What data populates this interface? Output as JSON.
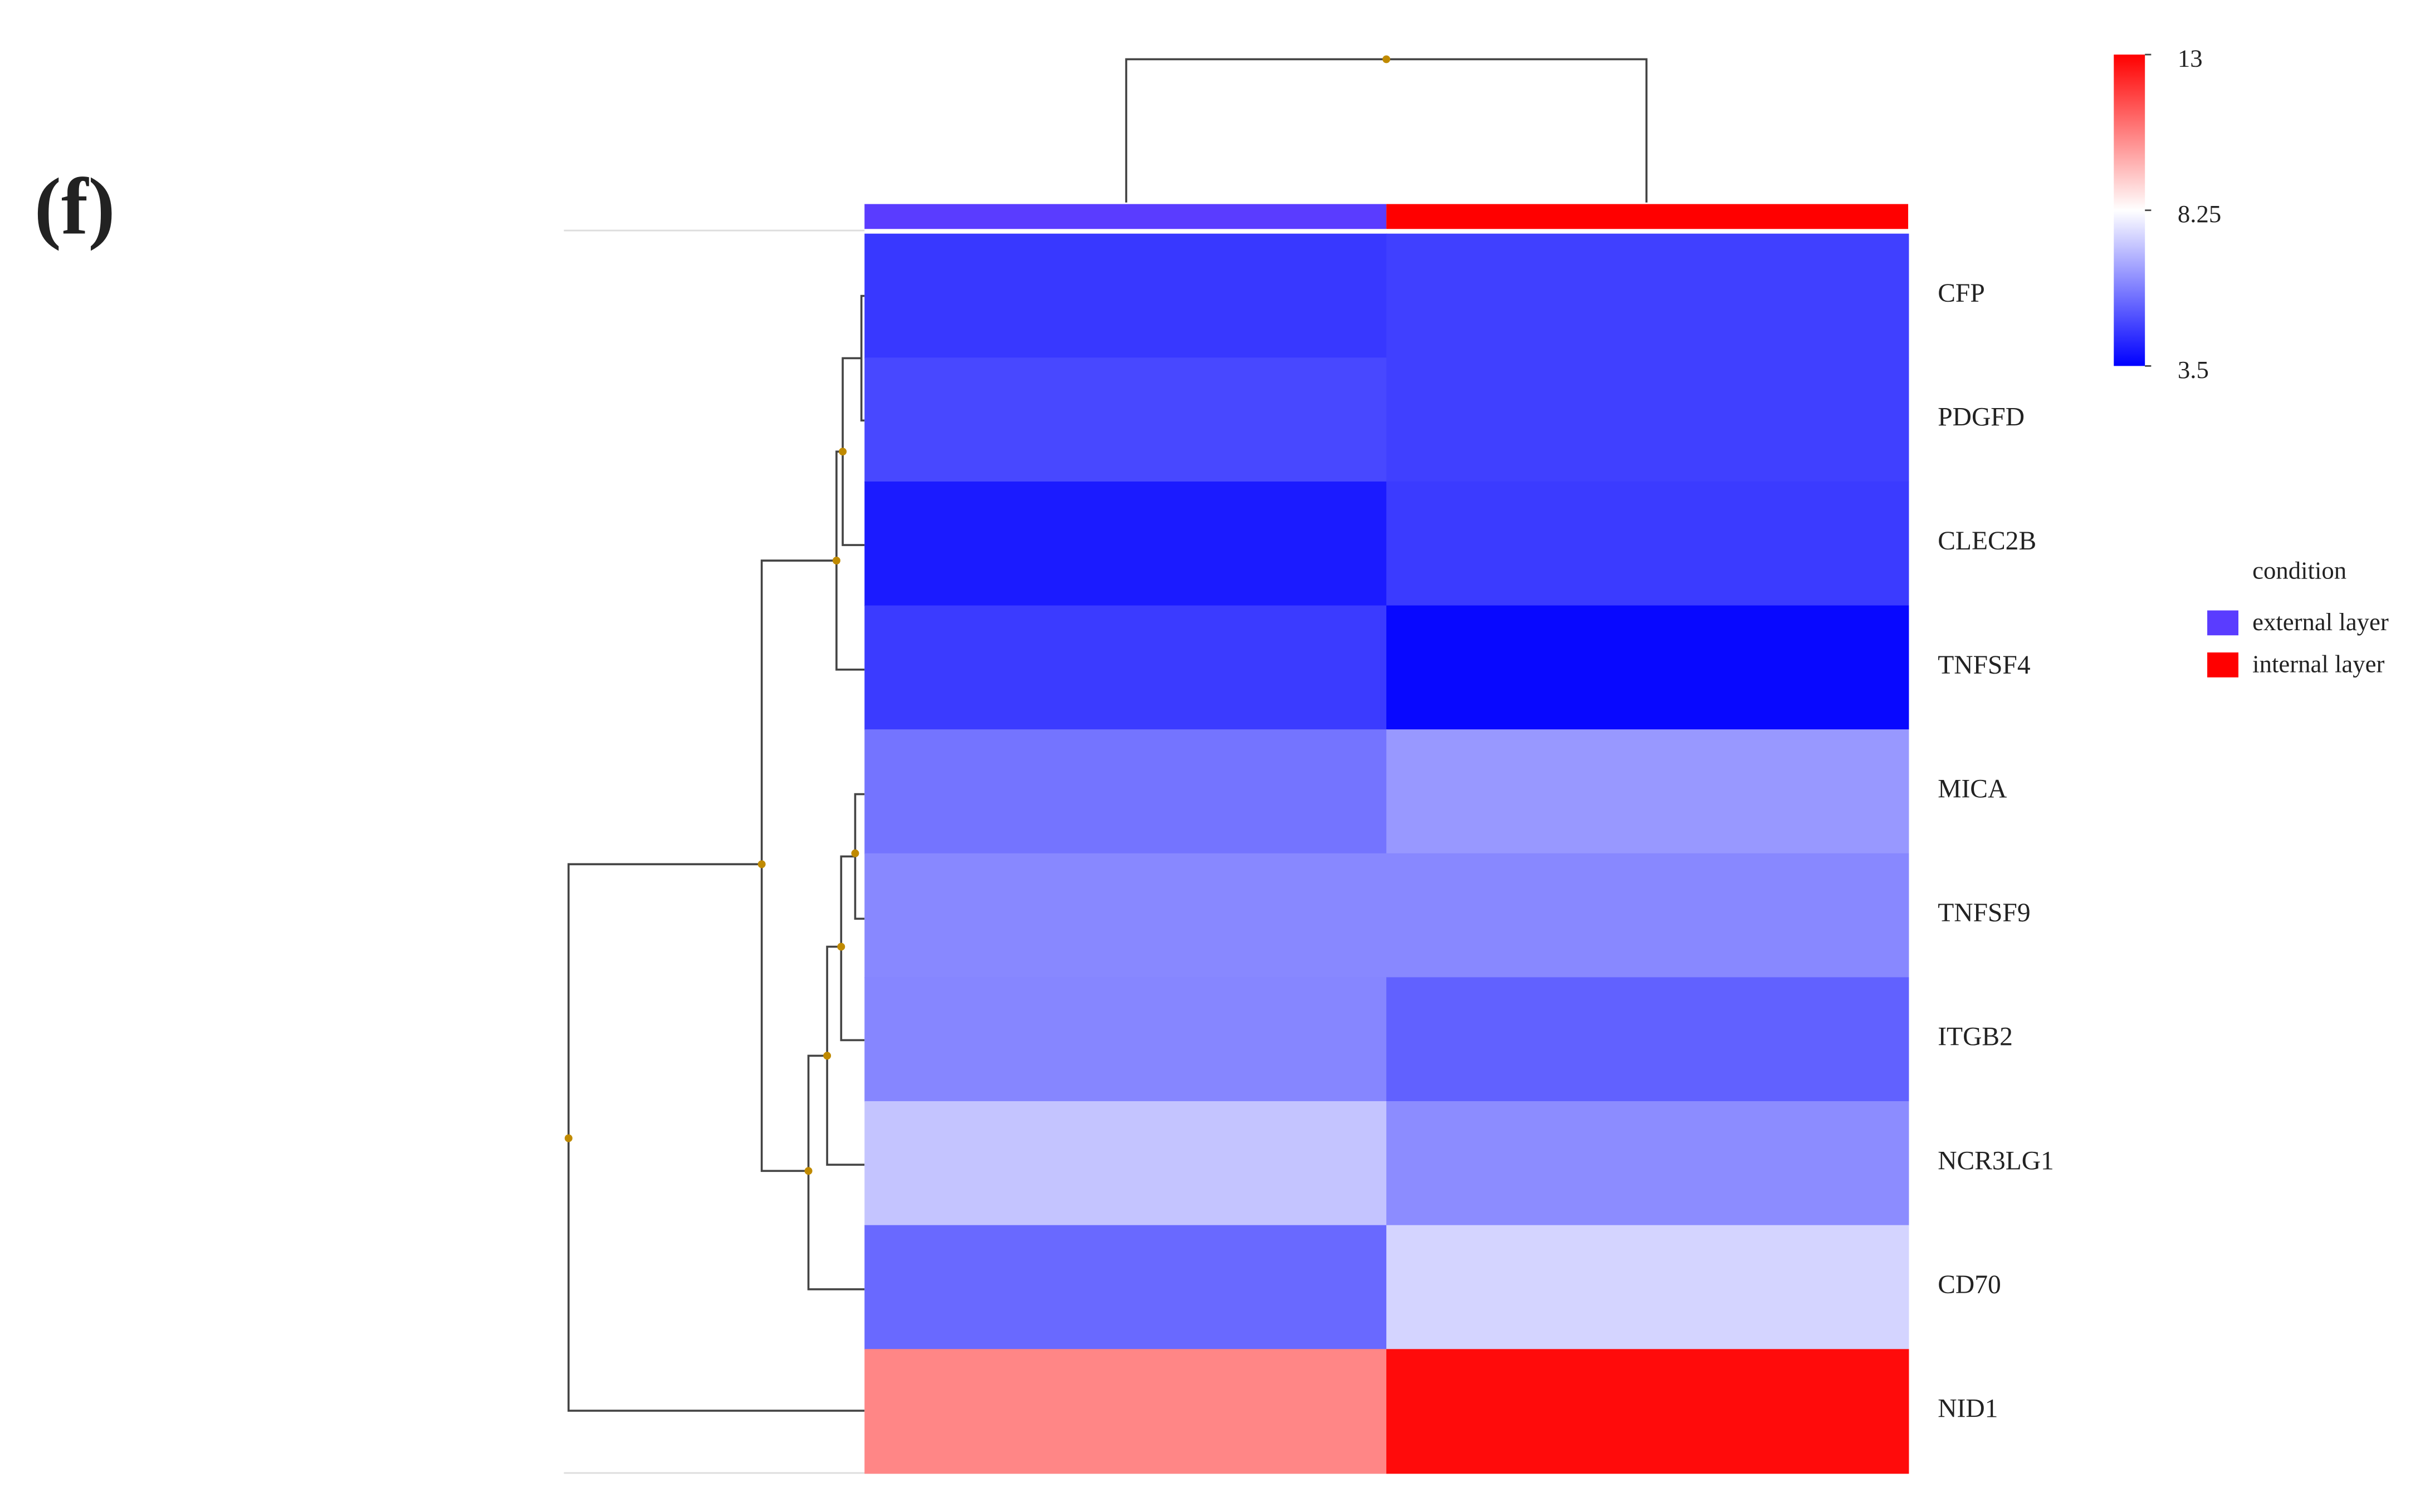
{
  "panel_label": "(f)",
  "chart_data": {
    "type": "heatmap",
    "rows": [
      "CFP",
      "PDGFD",
      "CLEC2B",
      "TNFSF4",
      "MICA",
      "TNFSF9",
      "ITGB2",
      "NCR3LG1",
      "CD70",
      "NID1"
    ],
    "values": [
      [
        4.54,
        4.7
      ],
      [
        4.84,
        4.7
      ],
      [
        4.0,
        4.6
      ],
      [
        4.6,
        3.65
      ],
      [
        5.66,
        6.33
      ],
      [
        6.03,
        6.03
      ],
      [
        6.0,
        5.3
      ],
      [
        7.15,
        6.1
      ],
      [
        5.45,
        7.45
      ],
      [
        10.5,
        12.8
      ]
    ],
    "colorscale": [
      "#0000ff",
      "#ffffff",
      "#ff0000"
    ],
    "clim": [
      3.5,
      13
    ],
    "cticks": [
      13,
      8.25,
      3.5
    ],
    "legend": {
      "title": "condition",
      "entries": [
        {
          "name": "external layer",
          "color": "#5a3cff"
        },
        {
          "name": "internal layer",
          "color": "#ff0000"
        }
      ]
    }
  }
}
